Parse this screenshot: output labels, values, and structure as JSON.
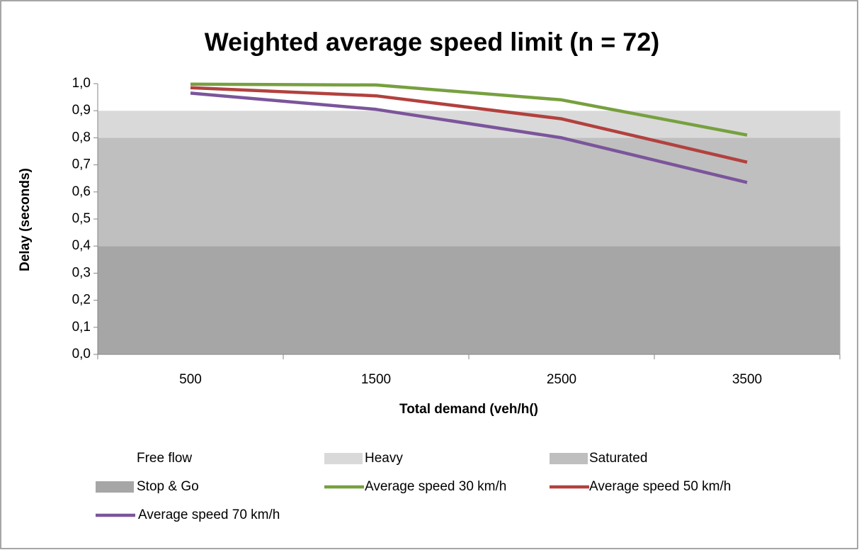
{
  "chart_data": {
    "type": "line",
    "title": "Weighted average speed limit (n = 72)",
    "x_label": "Total demand (veh/h()",
    "y_label": "Delay (seconds)",
    "categories": [
      "500",
      "1500",
      "2500",
      "3500"
    ],
    "ylim": [
      0,
      1
    ],
    "yticks": [
      {
        "value": 0,
        "label": "0,0"
      },
      {
        "value": 0.1,
        "label": "0,1"
      },
      {
        "value": 0.2,
        "label": "0,2"
      },
      {
        "value": 0.3,
        "label": "0,3"
      },
      {
        "value": 0.4,
        "label": "0,4"
      },
      {
        "value": 0.5,
        "label": "0,5"
      },
      {
        "value": 0.6,
        "label": "0,6"
      },
      {
        "value": 0.7,
        "label": "0,7"
      },
      {
        "value": 0.8,
        "label": "0,8"
      },
      {
        "value": 0.9,
        "label": "0,9"
      },
      {
        "value": 1,
        "label": "1,0"
      }
    ],
    "grid": false,
    "bands": [
      {
        "name": "Free flow",
        "color": "#ffffff",
        "values": [
          0.1,
          0.1,
          0.1,
          0.1
        ]
      },
      {
        "name": "Heavy",
        "color": "#d9d9d9",
        "values": [
          0.1,
          0.1,
          0.1,
          0.1
        ]
      },
      {
        "name": "Saturated",
        "color": "#bfbfbf",
        "values": [
          0.4,
          0.4,
          0.4,
          0.4
        ]
      },
      {
        "name": "Stop & Go",
        "color": "#a6a6a6",
        "values": [
          0.4,
          0.4,
          0.4,
          0.4
        ]
      }
    ],
    "series": [
      {
        "name": "Average speed 30 km/h",
        "color": "#77a03f",
        "values": [
          0.998,
          0.995,
          0.94,
          0.81
        ]
      },
      {
        "name": "Average speed 50 km/h",
        "color": "#b2413e",
        "values": [
          0.985,
          0.955,
          0.87,
          0.71
        ]
      },
      {
        "name": "Average speed 70 km/h",
        "color": "#7b559b",
        "values": [
          0.965,
          0.905,
          0.8,
          0.635
        ]
      }
    ]
  }
}
